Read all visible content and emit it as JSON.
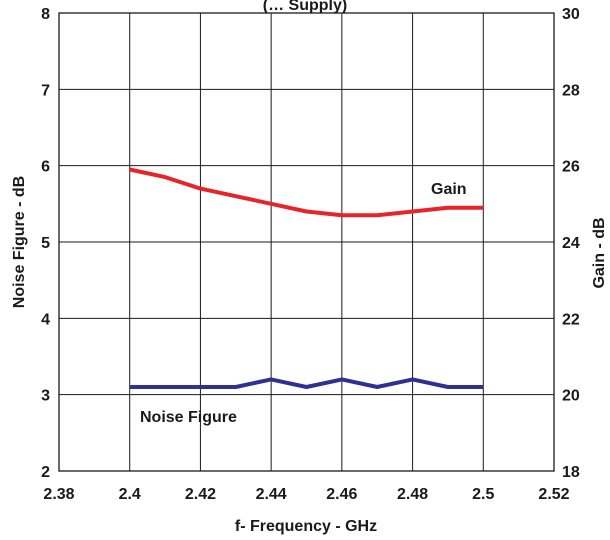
{
  "chart_data": {
    "type": "line",
    "title": "(… Supply)",
    "xlabel": "f- Frequency - GHz",
    "ylabel_left": "Noise Figure - dB",
    "ylabel_right": "Gain - dB",
    "xlim": [
      2.38,
      2.52
    ],
    "ylim_left": [
      2,
      8
    ],
    "ylim_right": [
      18,
      30
    ],
    "x_ticks": [
      "2.38",
      "2.4",
      "2.42",
      "2.44",
      "2.46",
      "2.48",
      "2.5",
      "2.52"
    ],
    "y_left_ticks": [
      "2",
      "3",
      "4",
      "5",
      "6",
      "7",
      "8"
    ],
    "y_right_ticks": [
      "18",
      "20",
      "22",
      "24",
      "26",
      "28",
      "30"
    ],
    "grid": true,
    "series": [
      {
        "name": "Gain",
        "axis": "right",
        "color": "#e8242b",
        "x": [
          2.4,
          2.41,
          2.42,
          2.43,
          2.44,
          2.45,
          2.46,
          2.47,
          2.48,
          2.49,
          2.5
        ],
        "y": [
          25.9,
          25.7,
          25.4,
          25.2,
          25.0,
          24.8,
          24.7,
          24.7,
          24.8,
          24.9,
          24.9
        ]
      },
      {
        "name": "Noise Figure",
        "axis": "left",
        "color": "#2e3192",
        "x": [
          2.4,
          2.41,
          2.42,
          2.43,
          2.44,
          2.45,
          2.46,
          2.47,
          2.48,
          2.49,
          2.5
        ],
        "y": [
          3.1,
          3.1,
          3.1,
          3.1,
          3.2,
          3.1,
          3.2,
          3.1,
          3.2,
          3.1,
          3.1
        ]
      }
    ]
  }
}
